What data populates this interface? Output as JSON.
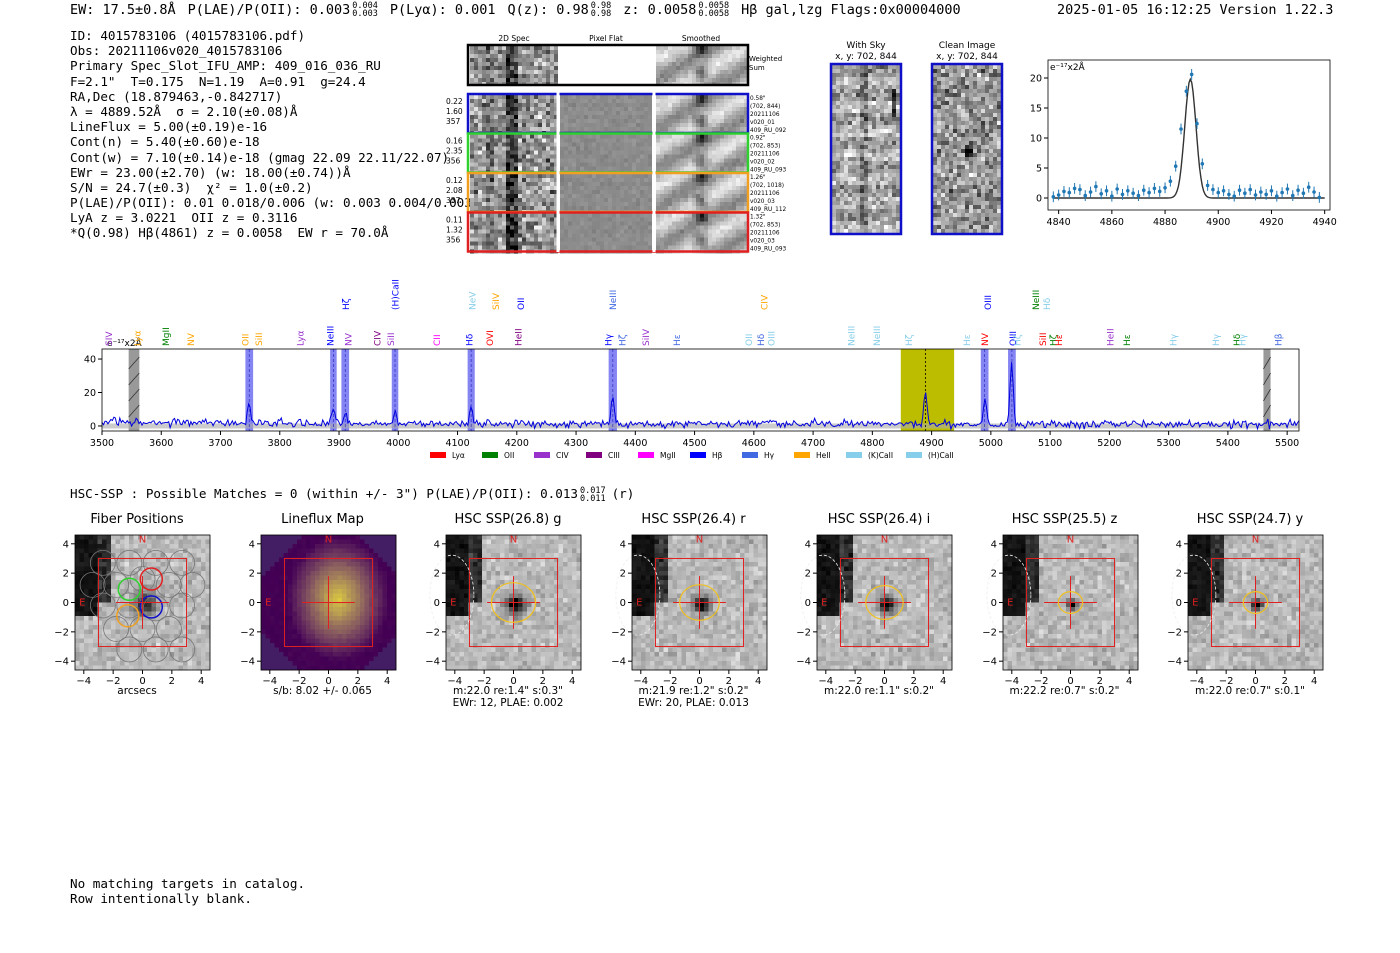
{
  "header": {
    "summary_segments": [
      {
        "text": "EW: 17.5±0.8Å"
      },
      {
        "text": "P(LAE)/P(OII): 0.003",
        "sup": "0.004",
        "sub": "0.003"
      },
      {
        "text": "P(Lyα): 0.001"
      },
      {
        "text": "Q(z): 0.98",
        "sup": "0.98",
        "sub": "0.98"
      },
      {
        "text": "z: 0.0058",
        "sup": "0.0058",
        "sub": "0.0058"
      },
      {
        "text": "Hβ  gal,lzg  Flags:0x00004000"
      }
    ],
    "timestamp": "2025-01-05 16:12:25  Version 1.22.3"
  },
  "info_lines": [
    "ID: 4015783106 (4015783106.pdf)",
    "Obs: 20211106v020_4015783106",
    "Primary Spec_Slot_IFU_AMP: 409_016_036_RU",
    "F=2.1\"  T=0.175  N=1.19  A=0.91  g=24.4",
    "RA,Dec (18.879463,-0.842717)",
    "λ = 4889.52Å  σ = 2.10(±0.08)Å",
    "LineFlux = 5.00(±0.19)e-16",
    "Cont(n) = 5.40(±0.60)e-18",
    "Cont(w) = 7.10(±0.14)e-18 (gmag 22.09 22.11/22.07)",
    "EWr = 23.00(±2.70) (w: 18.00(±0.74))Å",
    "S/N = 24.7(±0.3)  χ² = 1.0(±0.2)",
    "P(LAE)/P(OII): 0.01 0.018/0.006 (w: 0.003 0.004/0.003)",
    "LyA z = 3.0221  OII z = 0.3116",
    "*Q(0.98) Hβ(4861) z = 0.0058  EW r = 70.0Å"
  ],
  "cutouts": {
    "col_headers": [
      "2D Spec",
      "Pixel Flat",
      "Smoothed"
    ],
    "weighted_label": "Weighted Sum",
    "rows": [
      {
        "left": [
          "0.22",
          "1.60",
          "357"
        ],
        "right": [
          "0.58\"",
          "(702, 844)",
          "20211106",
          "v020_01",
          "409_RU_092"
        ],
        "color": "#1010c8"
      },
      {
        "left": [
          "0.16",
          "2.35",
          "356"
        ],
        "right": [
          "0.92\"",
          "(702, 853)",
          "20211106",
          "v020_02",
          "409_RU_093"
        ],
        "color": "#2ed12e"
      },
      {
        "left": [
          "0.12",
          "2.08",
          "337"
        ],
        "right": [
          "1.26\"",
          "(702, 1018)",
          "20211106",
          "v020_03",
          "409_RU_112"
        ],
        "color": "#f0a020"
      },
      {
        "left": [
          "0.11",
          "1.32",
          "356"
        ],
        "right": [
          "1.32\"",
          "(702, 853)",
          "20211106",
          "v020_03",
          "409_RU_093"
        ],
        "color": "#e02020"
      }
    ],
    "with_sky_title": "With Sky",
    "with_sky_coords": "x, y: 702, 844",
    "clean_title": "Clean Image",
    "clean_coords": "x, y: 702, 844"
  },
  "units_label": "e⁻¹⁷x2Å",
  "zoom_chart": {
    "type": "line",
    "xlim": [
      4836,
      4942
    ],
    "ylim": [
      -2,
      23
    ],
    "xticks": [
      4840,
      4860,
      4880,
      4900,
      4920,
      4940
    ],
    "yticks": [
      0,
      5,
      10,
      15,
      20
    ],
    "fit_center": 4889.52,
    "fit_sigma": 2.1,
    "fit_peak": 19.8,
    "points_x": [
      4838,
      4840,
      4842,
      4844,
      4846,
      4848,
      4850,
      4852,
      4854,
      4856,
      4858,
      4860,
      4862,
      4864,
      4866,
      4868,
      4870,
      4872,
      4874,
      4876,
      4878,
      4880,
      4882,
      4884,
      4886,
      4888,
      4890,
      4892,
      4894,
      4896,
      4898,
      4900,
      4902,
      4904,
      4906,
      4908,
      4910,
      4912,
      4914,
      4916,
      4918,
      4920,
      4922,
      4924,
      4926,
      4928,
      4930,
      4932,
      4934,
      4936,
      4938
    ],
    "points_y": [
      0.2,
      0.5,
      1.1,
      0.9,
      1.6,
      1.4,
      0.4,
      1.0,
      1.9,
      0.7,
      1.2,
      0.3,
      1.5,
      0.6,
      1.2,
      0.8,
      0.4,
      1.3,
      0.9,
      1.6,
      1.1,
      1.7,
      2.8,
      5.3,
      11.5,
      17.8,
      20.6,
      12.4,
      5.7,
      2.1,
      1.4,
      0.9,
      1.2,
      0.6,
      0.3,
      1.3,
      0.8,
      1.4,
      0.5,
      1.0,
      0.6,
      1.2,
      0.3,
      0.9,
      1.5,
      0.4,
      1.3,
      0.8,
      1.8,
      1.0,
      0.1
    ],
    "error": 0.9
  },
  "chart_data": {
    "type": "line",
    "xlim": [
      3500,
      5520
    ],
    "ylim": [
      -3,
      46
    ],
    "xticks": [
      3500,
      3600,
      3700,
      3800,
      3900,
      4000,
      4100,
      4200,
      4300,
      4400,
      4500,
      4600,
      4700,
      4800,
      4900,
      5000,
      5100,
      5200,
      5300,
      5400,
      5500
    ],
    "yticks": [
      0,
      20,
      40
    ],
    "ylabel": "e⁻¹⁷x2Å",
    "peaks": [
      {
        "x": 3748,
        "h": 12
      },
      {
        "x": 3890,
        "h": 8
      },
      {
        "x": 3911,
        "h": 6
      },
      {
        "x": 3994,
        "h": 8
      },
      {
        "x": 4123,
        "h": 10
      },
      {
        "x": 4362,
        "h": 16
      },
      {
        "x": 4889.5,
        "h": 20
      },
      {
        "x": 4990,
        "h": 15
      },
      {
        "x": 5035,
        "h": 38
      }
    ],
    "noise_level": 3,
    "bands_blue": [
      [
        3742,
        3755
      ],
      [
        3885,
        3896
      ],
      [
        3904,
        3917
      ],
      [
        3989,
        4000
      ],
      [
        4117,
        4129
      ],
      [
        4355,
        4369
      ],
      [
        4983,
        4996
      ],
      [
        5029,
        5042
      ]
    ],
    "band_yellow": [
      4848,
      4938
    ],
    "bands_gray_hatch": [
      [
        3545,
        3563
      ],
      [
        5460,
        5472
      ]
    ],
    "legend": [
      {
        "label": "Lyα",
        "color": "#ff0000"
      },
      {
        "label": "OII",
        "color": "#008000"
      },
      {
        "label": "CIV",
        "color": "#9932cc"
      },
      {
        "label": "CIII",
        "color": "#800080"
      },
      {
        "label": "MgII",
        "color": "#ff00ff"
      },
      {
        "label": "Hβ",
        "color": "#0000ff"
      },
      {
        "label": "Hγ",
        "color": "#4169e1"
      },
      {
        "label": "HeII",
        "color": "#ffa500"
      },
      {
        "label": "(K)CaII",
        "color": "#87ceeb"
      },
      {
        "label": "(H)CaII",
        "color": "#87ceeb"
      }
    ],
    "line_labels": [
      {
        "x": 3512,
        "t": "SIV",
        "c": "#9932cc",
        "row": 1
      },
      {
        "x": 3560,
        "t": "Lyα",
        "c": "#ffa500",
        "row": 1
      },
      {
        "x": 3608,
        "t": "MgII",
        "c": "#008000",
        "row": 1
      },
      {
        "x": 3650,
        "t": "NV",
        "c": "#ffa500",
        "row": 1
      },
      {
        "x": 3742,
        "t": "OII",
        "c": "#ffa500",
        "row": 1
      },
      {
        "x": 3765,
        "t": "SiII",
        "c": "#ffa500",
        "row": 1
      },
      {
        "x": 3835,
        "t": "Lyα",
        "c": "#9932cc",
        "row": 1
      },
      {
        "x": 3886,
        "t": "NeIII",
        "c": "#0000ff",
        "row": 1
      },
      {
        "x": 3912,
        "t": "Hζ",
        "c": "#0000ff",
        "row": 0
      },
      {
        "x": 3916,
        "t": "NV",
        "c": "#9932cc",
        "row": 1
      },
      {
        "x": 3965,
        "t": "CIV",
        "c": "#800080",
        "row": 1
      },
      {
        "x": 3988,
        "t": "SiII",
        "c": "#9932cc",
        "row": 1
      },
      {
        "x": 3995,
        "t": "(H)CaII",
        "c": "#0000ff",
        "row": 0
      },
      {
        "x": 4065,
        "t": "CII",
        "c": "#ff00ff",
        "row": 1
      },
      {
        "x": 4120,
        "t": "Hδ",
        "c": "#0000ff",
        "row": 1
      },
      {
        "x": 4125,
        "t": "NeV",
        "c": "#87ceeb",
        "row": 0
      },
      {
        "x": 4155,
        "t": "OVI",
        "c": "#ff0000",
        "row": 1
      },
      {
        "x": 4165,
        "t": "SiIV",
        "c": "#ffa500",
        "row": 0
      },
      {
        "x": 4203,
        "t": "HeII",
        "c": "#800080",
        "row": 1
      },
      {
        "x": 4207,
        "t": "OII",
        "c": "#0000ff",
        "row": 0
      },
      {
        "x": 4355,
        "t": "Hγ",
        "c": "#0000ff",
        "row": 1
      },
      {
        "x": 4362,
        "t": "NeIII",
        "c": "#4169e1",
        "row": 0
      },
      {
        "x": 4378,
        "t": "Hζ",
        "c": "#4169e1",
        "row": 1
      },
      {
        "x": 4418,
        "t": "SiIV",
        "c": "#9932cc",
        "row": 1
      },
      {
        "x": 4470,
        "t": "Hε",
        "c": "#4169e1",
        "row": 1
      },
      {
        "x": 4592,
        "t": "OII",
        "c": "#87ceeb",
        "row": 1
      },
      {
        "x": 4612,
        "t": "Hδ",
        "c": "#4169e1",
        "row": 1
      },
      {
        "x": 4618,
        "t": "CIV",
        "c": "#ffa500",
        "row": 0
      },
      {
        "x": 4630,
        "t": "OIII",
        "c": "#87ceeb",
        "row": 1
      },
      {
        "x": 4765,
        "t": "NeIII",
        "c": "#87ceeb",
        "row": 1
      },
      {
        "x": 4808,
        "t": "NeIII",
        "c": "#87ceeb",
        "row": 1
      },
      {
        "x": 4862,
        "t": "Hζ",
        "c": "#87ceeb",
        "row": 1
      },
      {
        "x": 4960,
        "t": "Hε",
        "c": "#87ceeb",
        "row": 1
      },
      {
        "x": 4990,
        "t": "NV",
        "c": "#ff0000",
        "row": 1
      },
      {
        "x": 4995,
        "t": "OIII",
        "c": "#0000ff",
        "row": 0
      },
      {
        "x": 5037,
        "t": "OIII",
        "c": "#0000ff",
        "row": 1
      },
      {
        "x": 5045,
        "t": "Hζ",
        "c": "#87ceeb",
        "row": 1
      },
      {
        "x": 5076,
        "t": "NeIII",
        "c": "#008000",
        "row": 0
      },
      {
        "x": 5088,
        "t": "SiII",
        "c": "#ff0000",
        "row": 1
      },
      {
        "x": 5095,
        "t": "Hδ",
        "c": "#87ceeb",
        "row": 0
      },
      {
        "x": 5106,
        "t": "Hζ",
        "c": "#008000",
        "row": 1
      },
      {
        "x": 5115,
        "t": "Hε",
        "c": "#ff0000",
        "row": 1
      },
      {
        "x": 5202,
        "t": "HeII",
        "c": "#9932cc",
        "row": 1
      },
      {
        "x": 5230,
        "t": "Hε",
        "c": "#008000",
        "row": 1
      },
      {
        "x": 5308,
        "t": "Hγ",
        "c": "#87ceeb",
        "row": 1
      },
      {
        "x": 5380,
        "t": "Hγ",
        "c": "#87ceeb",
        "row": 1
      },
      {
        "x": 5415,
        "t": "Hδ",
        "c": "#008000",
        "row": 1
      },
      {
        "x": 5425,
        "t": "Hγ",
        "c": "#87ceeb",
        "row": 1
      },
      {
        "x": 5485,
        "t": "Hβ",
        "c": "#4169e1",
        "row": 1
      }
    ]
  },
  "hsc_header": {
    "text": "HSC-SSP : Possible Matches = 0 (within +/- 3\")  P(LAE)/P(OII): 0.013",
    "sup": "0.017",
    "sub": "0.011",
    "suffix": "(r)"
  },
  "panels": [
    {
      "title": "Fiber Positions",
      "caption": [
        "arcsecs"
      ],
      "kind": "fiber"
    },
    {
      "title": "Lineflux Map",
      "caption": [
        "s/b: 8.02 +/- 0.065"
      ],
      "kind": "lineflux"
    },
    {
      "title": "HSC SSP(26.8) g",
      "caption": [
        "m:22.0  re:1.4\"  s:0.3\"",
        "EWr: 12, PLAE: 0.002"
      ],
      "kind": "hsc",
      "ell": 1.0
    },
    {
      "title": "HSC SSP(26.4) r",
      "caption": [
        "m:21.9  re:1.2\"  s:0.2\"",
        "EWr: 20, PLAE: 0.013"
      ],
      "kind": "hsc",
      "ell": 0.9
    },
    {
      "title": "HSC SSP(26.4) i",
      "caption": [
        "m:22.0  re:1.1\"  s:0.2\""
      ],
      "kind": "hsc",
      "ell": 0.85
    },
    {
      "title": "HSC SSP(25.5) z",
      "caption": [
        "m:22.2  re:0.7\"  s:0.2\""
      ],
      "kind": "hsc",
      "ell": 0.55
    },
    {
      "title": "HSC SSP(24.7) y",
      "caption": [
        "m:22.0  re:0.7\"  s:0.1\""
      ],
      "kind": "hsc",
      "ell": 0.55
    }
  ],
  "panel_axis": {
    "ticks": [
      "−4",
      "−2",
      "0",
      "2",
      "4"
    ],
    "n_label": "N",
    "e_label": "E"
  },
  "bottom_lines": [
    "No matching targets in catalog.",
    "Row intentionally blank."
  ]
}
